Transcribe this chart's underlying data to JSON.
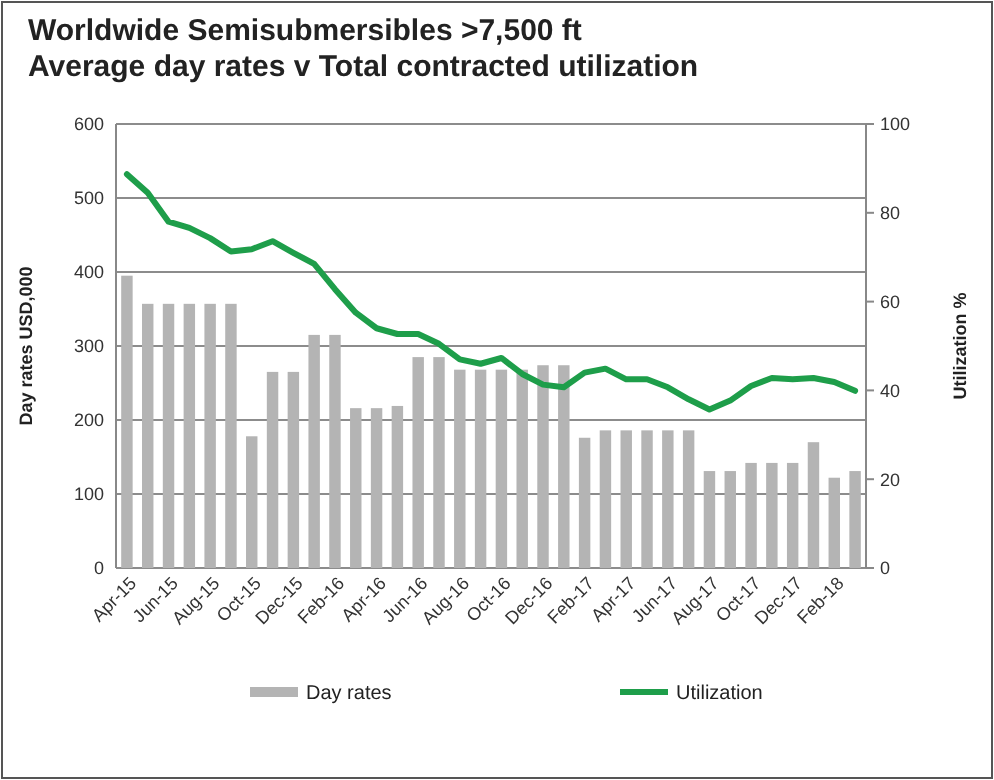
{
  "chart_data": {
    "type": "bar",
    "title": "Worldwide Semisubmersibles >7,500 ft",
    "subtitle": "Average day rates v Total contracted utilization",
    "ylabel": "Day rates USD,000",
    "y2label": "Utilization %",
    "categories": [
      "Apr-15",
      null,
      "Jun-15",
      null,
      "Aug-15",
      null,
      "Oct-15",
      null,
      "Dec-15",
      null,
      "Feb-16",
      null,
      "Apr-16",
      null,
      "Jun-16",
      null,
      "Aug-16",
      null,
      "Oct-16",
      null,
      "Dec-16",
      null,
      "Feb-17",
      null,
      "Apr-17",
      null,
      "Jun-17",
      null,
      "Aug-17",
      null,
      "Oct-17",
      null,
      "Dec-17",
      null,
      "Feb-18",
      null
    ],
    "series": [
      {
        "name": "Day rates",
        "color": "#b4b4b4",
        "values": [
          395,
          357,
          357,
          357,
          357,
          357,
          178,
          265,
          265,
          315,
          315,
          216,
          216,
          219,
          285,
          285,
          268,
          268,
          268,
          268,
          274,
          274,
          176,
          186,
          186,
          186,
          186,
          186,
          131,
          131,
          142,
          142,
          142,
          170,
          122,
          131
        ]
      },
      {
        "name": "Utilization",
        "type": "line",
        "axis": "y2",
        "color": "#1e9e4a",
        "values": [
          88.7,
          84.5,
          78,
          76.6,
          74.3,
          71.3,
          71.8,
          73.6,
          71,
          68.5,
          62.8,
          57.5,
          54,
          52.7,
          52.7,
          50.5,
          47,
          46,
          47.3,
          43.7,
          41.3,
          40.7,
          44,
          44.9,
          42.5,
          42.5,
          40.7,
          38,
          35.7,
          37.7,
          41,
          42.8,
          42.5,
          42.8,
          41.9,
          39.9
        ]
      }
    ],
    "ylim": [
      0,
      600
    ],
    "yticks": [
      0,
      100,
      200,
      300,
      400,
      500,
      600
    ],
    "y2lim": [
      0,
      100
    ],
    "y2ticks": [
      0,
      20,
      40,
      60,
      80,
      100
    ],
    "grid": "y",
    "legend": "bottom",
    "marker": "none",
    "line_style": "solid"
  }
}
